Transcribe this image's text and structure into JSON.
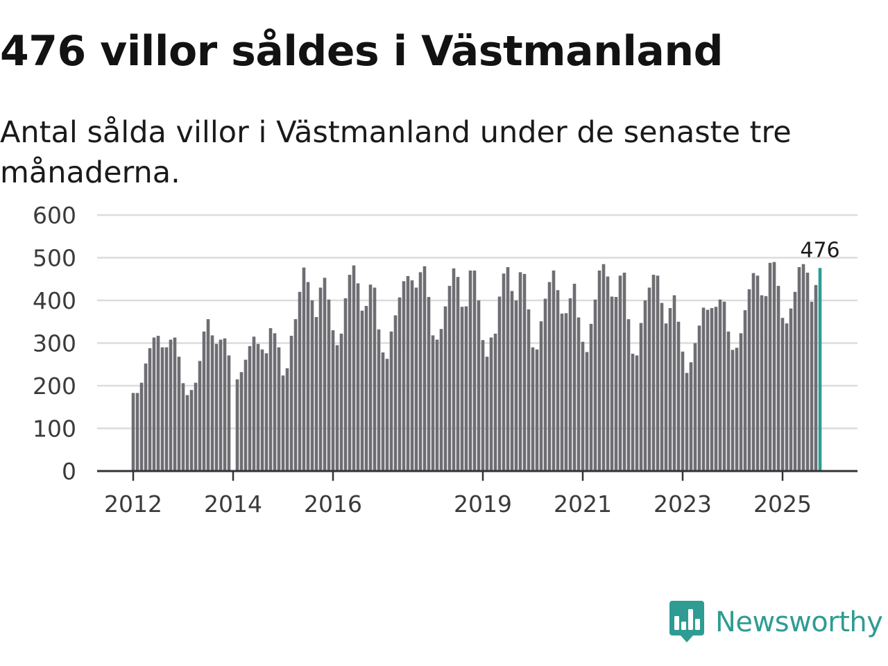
{
  "title": "476 villor såldes i Västmanland",
  "subtitle": "Antal sålda villor i Västmanland under de senaste tre månaderna.",
  "brand": {
    "name": "Newsworthy",
    "icon": "bar-chart-speech-bubble-icon"
  },
  "colors": {
    "bar": "#6e6d72",
    "highlight": "#2a9d94",
    "grid": "#dcdcdc",
    "axis": "#333333",
    "brand": "#2e9c92"
  },
  "chart_data": {
    "type": "bar",
    "title": "476 villor såldes i Västmanland",
    "subtitle": "Antal sålda villor i Västmanland under de senaste tre månaderna.",
    "xlabel": "",
    "ylabel": "",
    "ylim": [
      0,
      600
    ],
    "y_ticks": [
      "0",
      "100",
      "200",
      "300",
      "400",
      "500",
      "600"
    ],
    "y_tick_values": [
      0,
      100,
      200,
      300,
      400,
      500,
      600
    ],
    "x_ticks": [
      {
        "label": "2012",
        "index": 0
      },
      {
        "label": "2014",
        "index": 24
      },
      {
        "label": "2016",
        "index": 48
      },
      {
        "label": "2019",
        "index": 84
      },
      {
        "label": "2021",
        "index": 108
      },
      {
        "label": "2023",
        "index": 132
      },
      {
        "label": "2025",
        "index": 156
      }
    ],
    "grid": true,
    "start": "2012-01",
    "interval": "monthly",
    "highlight_label": "476",
    "series": [
      {
        "name": "Antal sålda villor",
        "values": [
          183,
          183,
          207,
          252,
          288,
          313,
          317,
          290,
          290,
          308,
          313,
          268,
          206,
          178,
          190,
          207,
          258,
          327,
          356,
          318,
          298,
          308,
          311,
          271,
          0,
          215,
          232,
          261,
          293,
          315,
          298,
          285,
          276,
          335,
          323,
          290,
          224,
          241,
          317,
          356,
          420,
          477,
          443,
          400,
          361,
          430,
          453,
          402,
          330,
          295,
          322,
          405,
          460,
          482,
          440,
          376,
          387,
          437,
          430,
          332,
          278,
          263,
          327,
          365,
          407,
          445,
          457,
          447,
          430,
          466,
          480,
          408,
          318,
          308,
          333,
          386,
          434,
          475,
          455,
          385,
          386,
          470,
          470,
          400,
          307,
          268,
          313,
          322,
          409,
          463,
          478,
          422,
          400,
          466,
          462,
          379,
          290,
          285,
          351,
          404,
          443,
          470,
          424,
          369,
          370,
          405,
          439,
          360,
          303,
          279,
          345,
          402,
          470,
          485,
          456,
          409,
          408,
          458,
          465,
          356,
          275,
          271,
          347,
          400,
          430,
          460,
          458,
          394,
          346,
          382,
          412,
          350,
          280,
          230,
          255,
          300,
          341,
          383,
          378,
          382,
          385,
          402,
          397,
          327,
          284,
          289,
          323,
          377,
          426,
          464,
          458,
          412,
          410,
          488,
          490,
          434,
          359,
          346,
          381,
          420,
          478,
          485,
          465,
          397,
          436,
          476
        ]
      }
    ]
  }
}
